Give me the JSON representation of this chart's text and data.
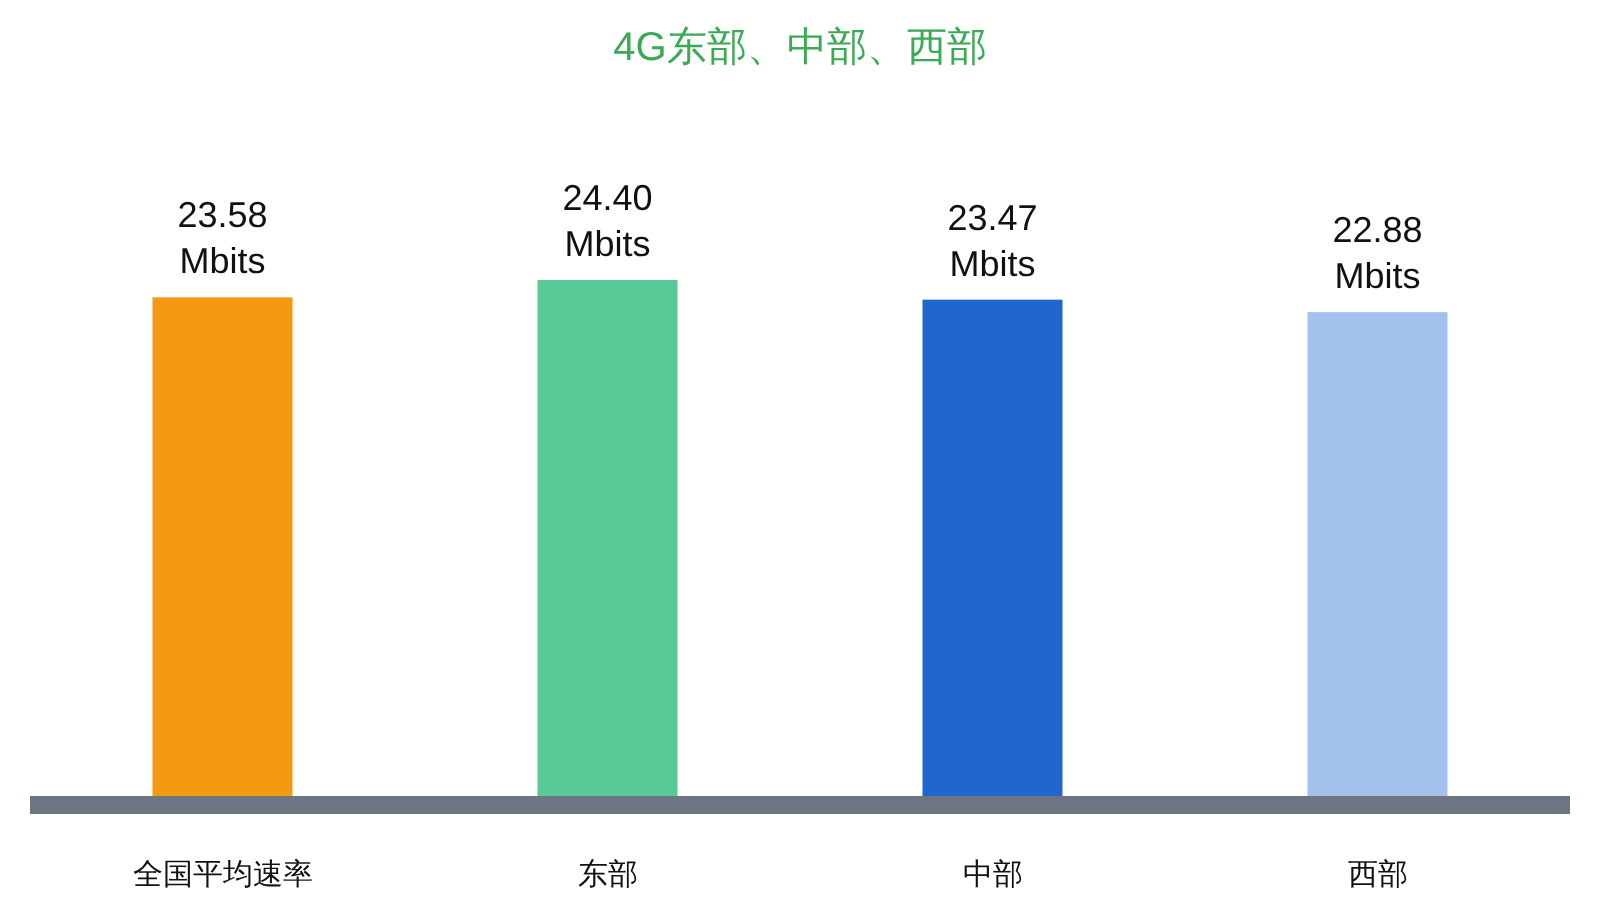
{
  "chart_data": {
    "type": "bar",
    "title": "4G东部、中部、西部",
    "categories": [
      "全国平均速率",
      "东部",
      "中部",
      "西部"
    ],
    "values": [
      23.58,
      24.4,
      23.47,
      22.88
    ],
    "colors": [
      "#f39a12",
      "#56c994",
      "#2166cc",
      "#a3c1ec"
    ],
    "value_labels": [
      "23.58 Mbits",
      "24.40 Mbits",
      "23.47 Mbits",
      "22.88 Mbits"
    ]
  }
}
